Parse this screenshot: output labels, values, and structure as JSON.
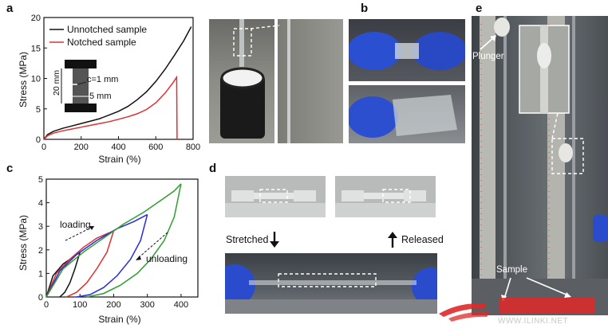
{
  "panels": {
    "a": "a",
    "b": "b",
    "c": "c",
    "d": "d",
    "e": "e"
  },
  "chart_data": [
    {
      "type": "line",
      "panel": "a",
      "title": "",
      "xlabel": "Strain (%)",
      "ylabel": "Stress (MPa)",
      "xlim": [
        0,
        800
      ],
      "ylim": [
        0,
        20
      ],
      "xticks": [
        0,
        200,
        400,
        600,
        800
      ],
      "yticks": [
        0,
        5,
        10,
        15,
        20
      ],
      "legend": "top-left",
      "series": [
        {
          "name": "Unnotched sample",
          "color": "#111111",
          "x": [
            0,
            20,
            50,
            100,
            150,
            200,
            250,
            300,
            350,
            400,
            450,
            500,
            550,
            600,
            650,
            700,
            750,
            790
          ],
          "y": [
            0,
            0.8,
            1.3,
            1.8,
            2.2,
            2.6,
            3.0,
            3.4,
            4.0,
            4.6,
            5.4,
            6.5,
            7.8,
            9.5,
            11.5,
            13.8,
            16.2,
            18.5
          ]
        },
        {
          "name": "Notched sample",
          "color": "#e03030",
          "x": [
            0,
            20,
            50,
            100,
            150,
            200,
            250,
            300,
            350,
            400,
            450,
            500,
            550,
            600,
            650,
            690,
            712,
            714
          ],
          "y": [
            0,
            0.6,
            1.0,
            1.4,
            1.7,
            2.0,
            2.3,
            2.6,
            2.9,
            3.3,
            3.7,
            4.2,
            4.9,
            6.0,
            7.6,
            9.2,
            10.2,
            0
          ]
        }
      ],
      "inset": {
        "dim_vertical": "20 mm",
        "dim_notch": "c=1 mm",
        "dim_width": "5 mm"
      }
    },
    {
      "type": "line",
      "panel": "c",
      "title": "",
      "xlabel": "Strain (%)",
      "ylabel": "Stress (MPa)",
      "xlim": [
        0,
        450
      ],
      "ylim": [
        0,
        5
      ],
      "xticks": [
        0,
        100,
        200,
        300,
        400
      ],
      "yticks": [
        0,
        1,
        2,
        3,
        4,
        5
      ],
      "annotations": [
        "loading",
        "unloading"
      ],
      "series": [
        {
          "color": "#111111",
          "loading": {
            "x": [
              0,
              20,
              50,
              80,
              100
            ],
            "y": [
              0,
              0.9,
              1.4,
              1.7,
              1.9
            ]
          },
          "unloading": {
            "x": [
              100,
              85,
              70,
              55,
              40
            ],
            "y": [
              1.9,
              1.2,
              0.6,
              0.2,
              0
            ]
          }
        },
        {
          "color": "#e03030",
          "loading": {
            "x": [
              0,
              30,
              70,
              110,
              150,
              200
            ],
            "y": [
              0,
              1.0,
              1.6,
              2.1,
              2.5,
              2.8
            ]
          },
          "unloading": {
            "x": [
              200,
              180,
              150,
              120,
              90,
              60
            ],
            "y": [
              2.8,
              1.9,
              1.2,
              0.6,
              0.2,
              0
            ]
          }
        },
        {
          "color": "#2a2ae0",
          "loading": {
            "x": [
              0,
              40,
              90,
              150,
              210,
              260,
              300
            ],
            "y": [
              0,
              1.1,
              1.8,
              2.4,
              2.9,
              3.2,
              3.5
            ]
          },
          "unloading": {
            "x": [
              300,
              280,
              250,
              210,
              170,
              130,
              90
            ],
            "y": [
              3.5,
              2.4,
              1.6,
              0.9,
              0.4,
              0.1,
              0
            ]
          }
        },
        {
          "color": "#2e9e2e",
          "loading": {
            "x": [
              0,
              50,
              110,
              170,
              230,
              290,
              340,
              380,
              400
            ],
            "y": [
              0,
              1.2,
              1.9,
              2.5,
              3.1,
              3.6,
              4.1,
              4.5,
              4.8
            ]
          },
          "unloading": {
            "x": [
              400,
              380,
              350,
              310,
              270,
              220,
              170,
              120
            ],
            "y": [
              4.8,
              3.4,
              2.4,
              1.6,
              1.0,
              0.5,
              0.15,
              0
            ]
          }
        }
      ]
    }
  ],
  "panel_d": {
    "stretched": "Stretched",
    "released": "Released"
  },
  "panel_e": {
    "plunger": "Plunger",
    "sample": "Sample"
  },
  "watermark": {
    "url": "WWW.ILINKI.NET"
  }
}
